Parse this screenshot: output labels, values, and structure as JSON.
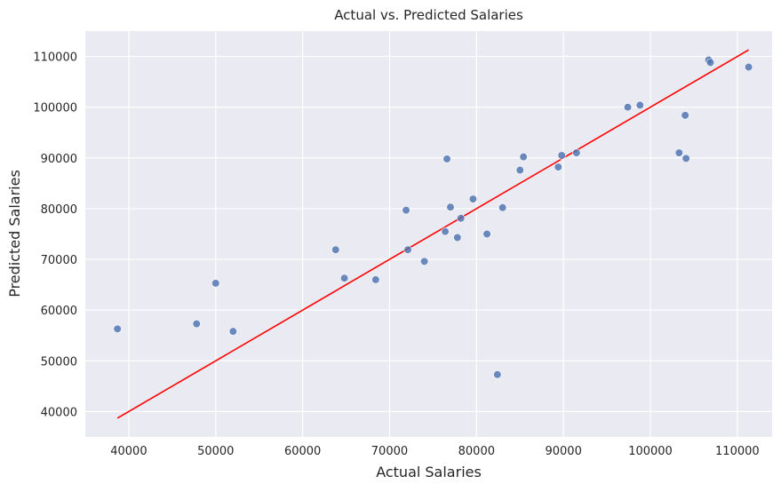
{
  "chart_data": {
    "type": "scatter",
    "title": "Actual vs. Predicted Salaries",
    "xlabel": "Actual Salaries",
    "ylabel": "Predicted Salaries",
    "xlim": [
      35000,
      114000
    ],
    "ylim": [
      35000,
      115000
    ],
    "xticks": [
      40000,
      50000,
      60000,
      70000,
      80000,
      90000,
      100000,
      110000
    ],
    "yticks": [
      40000,
      50000,
      60000,
      70000,
      80000,
      90000,
      100000,
      110000
    ],
    "grid": true,
    "background_color": "#EAEAF2",
    "point_color": "#4C72B0",
    "line_color": "#FF0000",
    "points": [
      {
        "x": 38700,
        "y": 56300
      },
      {
        "x": 47800,
        "y": 57300
      },
      {
        "x": 50000,
        "y": 65300
      },
      {
        "x": 52000,
        "y": 55800
      },
      {
        "x": 63800,
        "y": 71900
      },
      {
        "x": 64800,
        "y": 66300
      },
      {
        "x": 68400,
        "y": 66000
      },
      {
        "x": 71900,
        "y": 79700
      },
      {
        "x": 72100,
        "y": 71900
      },
      {
        "x": 74000,
        "y": 69600
      },
      {
        "x": 76400,
        "y": 75500
      },
      {
        "x": 76600,
        "y": 89800
      },
      {
        "x": 77000,
        "y": 80300
      },
      {
        "x": 77800,
        "y": 74300
      },
      {
        "x": 78200,
        "y": 78100
      },
      {
        "x": 79600,
        "y": 81900
      },
      {
        "x": 81200,
        "y": 75000
      },
      {
        "x": 82400,
        "y": 47300
      },
      {
        "x": 83000,
        "y": 80200
      },
      {
        "x": 85000,
        "y": 87600
      },
      {
        "x": 85400,
        "y": 90200
      },
      {
        "x": 89400,
        "y": 88200
      },
      {
        "x": 89800,
        "y": 90500
      },
      {
        "x": 91500,
        "y": 91000
      },
      {
        "x": 97400,
        "y": 100000
      },
      {
        "x": 98800,
        "y": 100400
      },
      {
        "x": 103300,
        "y": 91000
      },
      {
        "x": 104000,
        "y": 98400
      },
      {
        "x": 104100,
        "y": 89900
      },
      {
        "x": 106700,
        "y": 109300
      },
      {
        "x": 106900,
        "y": 108800
      },
      {
        "x": 111300,
        "y": 107900
      }
    ],
    "reference_line": {
      "x": [
        38700,
        111300
      ],
      "y": [
        38700,
        111300
      ]
    }
  }
}
